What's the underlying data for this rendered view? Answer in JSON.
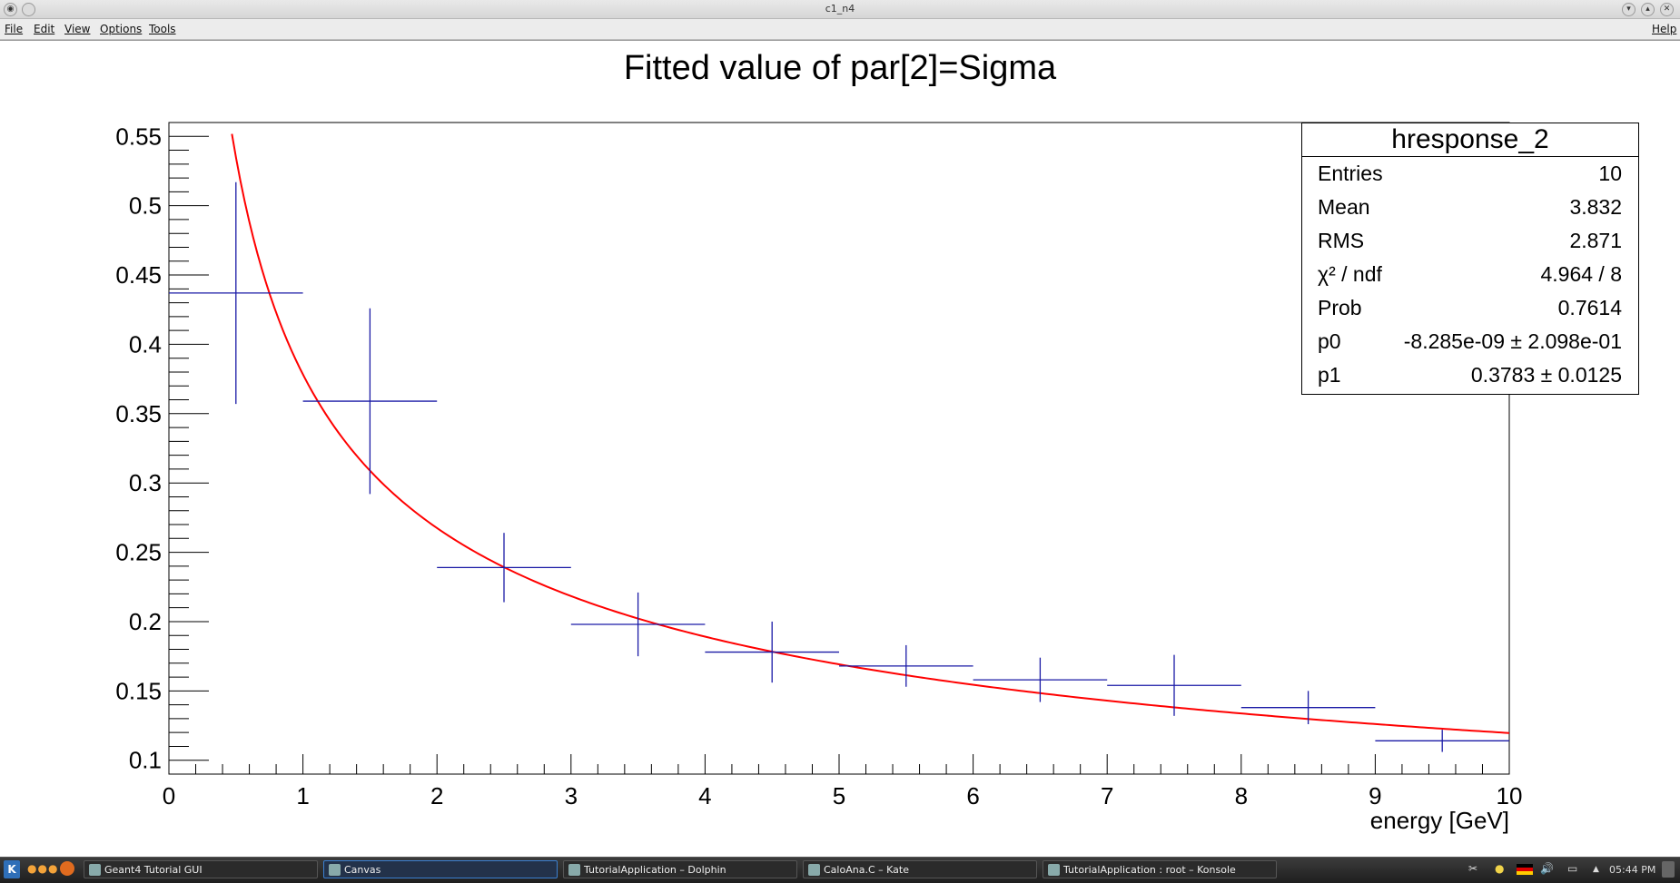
{
  "window": {
    "title": "c1_n4",
    "menu": [
      "File",
      "Edit",
      "View",
      "Options",
      "Tools"
    ],
    "help": "Help"
  },
  "chart_data": {
    "type": "scatter",
    "title": "Fitted value of par[2]=Sigma",
    "xlabel": "energy [GeV]",
    "ylabel": "",
    "xlim": [
      0,
      10
    ],
    "ylim": [
      0.09,
      0.56
    ],
    "xticks": [
      "0",
      "1",
      "2",
      "3",
      "4",
      "5",
      "6",
      "7",
      "8",
      "9",
      "10"
    ],
    "yticks": [
      "0.1",
      "0.15",
      "0.2",
      "0.25",
      "0.3",
      "0.35",
      "0.4",
      "0.45",
      "0.5",
      "0.55"
    ],
    "grid": false,
    "points": [
      {
        "x": 0.5,
        "y": 0.437,
        "xerr": 0.5,
        "yerr": 0.08
      },
      {
        "x": 1.5,
        "y": 0.359,
        "xerr": 0.5,
        "yerr": 0.067
      },
      {
        "x": 2.5,
        "y": 0.239,
        "xerr": 0.5,
        "yerr": 0.025
      },
      {
        "x": 3.5,
        "y": 0.198,
        "xerr": 0.5,
        "yerr": 0.023
      },
      {
        "x": 4.5,
        "y": 0.178,
        "xerr": 0.5,
        "yerr": 0.022
      },
      {
        "x": 5.5,
        "y": 0.168,
        "xerr": 0.5,
        "yerr": 0.015
      },
      {
        "x": 6.5,
        "y": 0.158,
        "xerr": 0.5,
        "yerr": 0.016
      },
      {
        "x": 7.5,
        "y": 0.154,
        "xerr": 0.5,
        "yerr": 0.022
      },
      {
        "x": 8.5,
        "y": 0.138,
        "xerr": 0.5,
        "yerr": 0.012
      },
      {
        "x": 9.5,
        "y": 0.114,
        "xerr": 0.5,
        "yerr": 0.008
      }
    ],
    "fit": {
      "function": "p0 + p1/sqrt(x)",
      "p0": -8.285e-09,
      "p1": 0.3783,
      "x_range": [
        0.47,
        10
      ],
      "color": "#ff0000"
    },
    "marker_color": "#1a1aa6",
    "stats": {
      "name": "hresponse_2",
      "rows": [
        {
          "label": "Entries",
          "value": "10"
        },
        {
          "label": "Mean",
          "value": "3.832"
        },
        {
          "label": "RMS",
          "value": "2.871"
        },
        {
          "label": "χ² / ndf",
          "value": "4.964 / 8"
        },
        {
          "label": "Prob",
          "value": "0.7614"
        },
        {
          "label": "p0",
          "value": "-8.285e-09 ± 2.098e-01"
        },
        {
          "label": "p1",
          "value": "0.3783 ± 0.0125"
        }
      ]
    }
  },
  "taskbar": {
    "items": [
      {
        "label": "Geant4 Tutorial GUI",
        "active": false
      },
      {
        "label": "Canvas",
        "active": true
      },
      {
        "label": "TutorialApplication – Dolphin",
        "active": false
      },
      {
        "label": "CaloAna.C – Kate",
        "active": false
      },
      {
        "label": "TutorialApplication : root – Konsole",
        "active": false
      }
    ],
    "clock": "05:44 PM"
  }
}
